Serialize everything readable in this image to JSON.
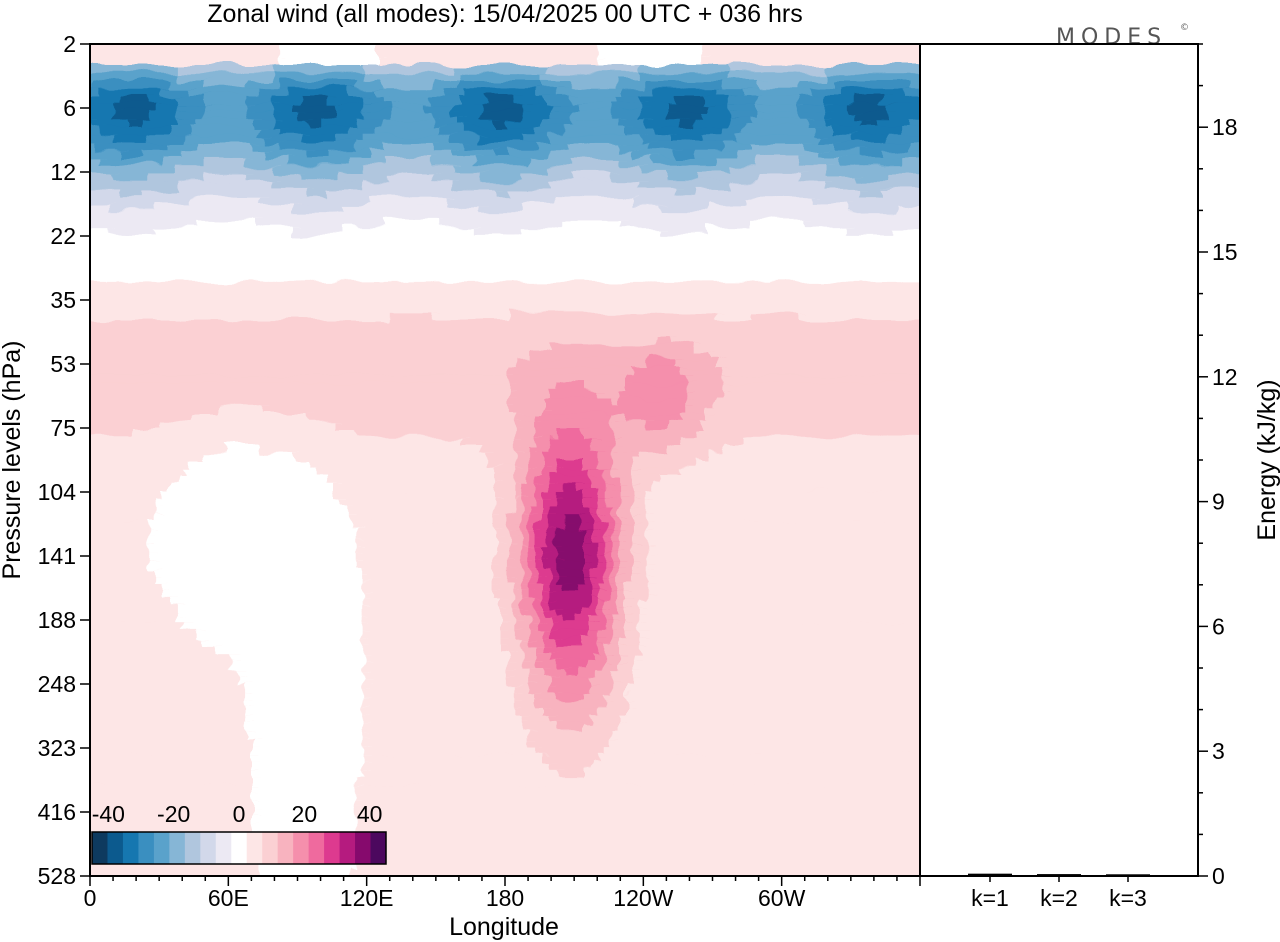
{
  "title": "Zonal wind (all modes):  15/04/2025  00 UTC  + 036 hrs",
  "logo": "MODES",
  "logo_mark": "©",
  "chart_data": [
    {
      "type": "heatmap",
      "xlabel": "Longitude",
      "ylabel": "Pressure levels (hPa)",
      "x_tick_labels": [
        "0",
        "60E",
        "120E",
        "180",
        "120W",
        "60W"
      ],
      "x_tick_lon_east": [
        0,
        60,
        120,
        180,
        240,
        300
      ],
      "xlim_lon_east": [
        0,
        360
      ],
      "y_tick_labels": [
        "2",
        "6",
        "12",
        "22",
        "35",
        "53",
        "75",
        "104",
        "141",
        "188",
        "248",
        "323",
        "416",
        "528"
      ],
      "colorbar": {
        "tick_labels": [
          "-40",
          "-20",
          "0",
          "20",
          "40"
        ],
        "tick_values": [
          -40,
          -20,
          0,
          20,
          40
        ],
        "range": [
          -45,
          45
        ],
        "colors": [
          "#0e3a5f",
          "#0c5a8e",
          "#1677b0",
          "#3a8fc0",
          "#5aa2cb",
          "#86b6d6",
          "#b0c6de",
          "#d2d8ea",
          "#ece9f3",
          "#ffffff",
          "#fde6e6",
          "#fbd0d3",
          "#f8b3bf",
          "#f58fac",
          "#ef6a9e",
          "#dd3a8f",
          "#b51b7f",
          "#860a6d",
          "#4c085e"
        ]
      },
      "wind_field_summary": {
        "stratosphere_easterly_core_hpa": 6,
        "stratosphere_easterly_core_value": -40,
        "subtropical_jet_lon_east": 210,
        "subtropical_jet_level_hpa": 141,
        "subtropical_jet_max": 35,
        "zero_line_hpa": 26
      }
    },
    {
      "type": "bar",
      "ylabel": "Energy (kJ/kg)",
      "categories": [
        "k=1",
        "k=2",
        "k=3"
      ],
      "values": [
        0.02,
        0.01,
        0.005
      ],
      "ylim": [
        0,
        20
      ],
      "y_tick_labels": [
        "0",
        "3",
        "6",
        "9",
        "12",
        "15",
        "18"
      ],
      "y_tick_values": [
        0,
        3,
        6,
        9,
        12,
        15,
        18
      ]
    }
  ]
}
